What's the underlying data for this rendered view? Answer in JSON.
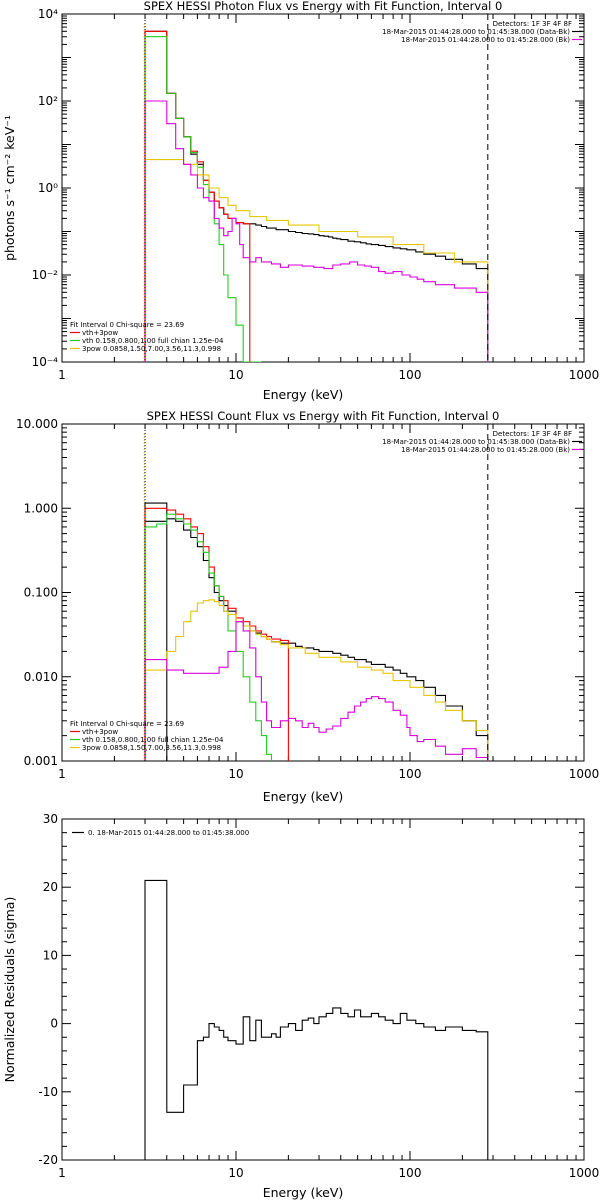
{
  "colors": {
    "black": "#000000",
    "red": "#ff0000",
    "green": "#22cc22",
    "magenta": "#dd00dd",
    "gold": "#e6c800",
    "orange": "#ff9900"
  },
  "chart_data": [
    {
      "type": "line",
      "id": "photon",
      "title": "SPEX HESSI Photon Flux vs Energy with Fit Function, Interval 0",
      "xlabel": "Energy (keV)",
      "ylabel": "photons s⁻¹ cm⁻² keV⁻¹",
      "xscale": "log",
      "yscale": "log",
      "xlim": [
        1,
        1000
      ],
      "ylim": [
        0.0001,
        10000
      ],
      "xticks": [
        {
          "v": 1,
          "label": "1"
        },
        {
          "v": 10,
          "label": "10"
        },
        {
          "v": 100,
          "label": "100"
        },
        {
          "v": 1000,
          "label": "1000"
        }
      ],
      "yticks": [
        {
          "v": 10000,
          "label": "10⁴"
        },
        {
          "v": 100,
          "label": "10²"
        },
        {
          "v": 1,
          "label": "10⁰"
        },
        {
          "v": 0.01,
          "label": "10⁻²"
        },
        {
          "v": 0.0001,
          "label": "10⁻⁴"
        }
      ],
      "vlines": [
        {
          "x": 3,
          "style": "dotted"
        },
        {
          "x": 280,
          "style": "dashed"
        }
      ],
      "legend_top": {
        "placement": "top-right",
        "header": "Detectors: 1F 3F 4F 8F",
        "entries": [
          {
            "text": "18-Mar-2015 01:44:28.000 to 01:45:38.000 (Data-Bk)",
            "color": "black"
          },
          {
            "text": "18-Mar-2015 01:44:28.000 to 01:45:28.000 (Bk)",
            "color": "magenta"
          }
        ]
      },
      "legend_bottom": {
        "placement": "bottom-left",
        "header": "Fit Interval 0   Chi-square = 23.69",
        "entries": [
          {
            "text": "vth+3pow",
            "color": "red"
          },
          {
            "text": "vth 0.158,0.800,1.00  full chian 1.25e-04",
            "color": "green"
          },
          {
            "text": "3pow 0.0858,1.50,7.00,3.56,11.3,0.998",
            "color": "gold"
          }
        ]
      },
      "series": [
        {
          "color": "black",
          "edges": [
            3,
            3.5,
            4,
            4.5,
            5,
            5.5,
            6,
            6.5,
            7,
            7.5,
            8,
            8.5,
            9,
            10,
            11,
            12,
            13,
            14,
            15,
            16,
            17,
            18,
            20,
            22,
            24,
            26,
            28,
            30,
            32,
            34,
            36,
            38,
            40,
            44,
            48,
            52,
            56,
            60,
            66,
            72,
            80,
            88,
            96,
            108,
            120,
            140,
            160,
            200,
            240,
            280
          ],
          "values": [
            4000,
            4000,
            150,
            40,
            15,
            6,
            3.5,
            1.5,
            0.8,
            0.5,
            0.35,
            0.25,
            0.2,
            0.16,
            0.15,
            0.15,
            0.14,
            0.13,
            0.12,
            0.12,
            0.11,
            0.11,
            0.1,
            0.095,
            0.09,
            0.088,
            0.085,
            0.08,
            0.078,
            0.075,
            0.07,
            0.068,
            0.065,
            0.06,
            0.058,
            0.055,
            0.052,
            0.05,
            0.048,
            0.045,
            0.042,
            0.04,
            0.038,
            0.034,
            0.03,
            0.027,
            0.023,
            0.018,
            0.014
          ]
        },
        {
          "color": "red",
          "edges": [
            3,
            4,
            4.5,
            5,
            5.5,
            6,
            6.5,
            7,
            7.5,
            8,
            8.5,
            9,
            10,
            11,
            12
          ],
          "values": [
            4000,
            150,
            40,
            15,
            7,
            4,
            1.5,
            0.8,
            0.5,
            0.35,
            0.25,
            0.2,
            0.16,
            0.15
          ]
        },
        {
          "color": "green",
          "edges": [
            3,
            3.5,
            4,
            4.5,
            5,
            5.5,
            6,
            6.5,
            7,
            7.5,
            8,
            8.5,
            9,
            10,
            11,
            12,
            13,
            14
          ],
          "values": [
            3000,
            3000,
            150,
            40,
            15,
            6.5,
            3,
            1.2,
            0.5,
            0.15,
            0.05,
            0.01,
            0.003,
            0.0007,
            0.0001,
            0.0001,
            0.0001
          ]
        },
        {
          "color": "gold",
          "edges": [
            3,
            4,
            5,
            6,
            7,
            8,
            9,
            10,
            12,
            15,
            20,
            30,
            50,
            80,
            120,
            180,
            280
          ],
          "values": [
            4.5,
            4.5,
            3.5,
            2,
            1,
            0.6,
            0.4,
            0.3,
            0.22,
            0.18,
            0.14,
            0.1,
            0.075,
            0.05,
            0.032,
            0.02
          ]
        },
        {
          "color": "magenta",
          "edges": [
            3,
            3.5,
            4,
            4.5,
            5,
            5.5,
            6,
            6.5,
            7,
            7.5,
            8,
            8.5,
            9,
            9.5,
            10,
            10.5,
            11,
            12,
            13,
            14,
            16,
            18,
            20,
            24,
            28,
            32,
            36,
            40,
            45,
            50,
            55,
            60,
            66,
            72,
            80,
            90,
            100,
            110,
            120,
            140,
            160,
            180,
            200,
            240,
            280
          ],
          "values": [
            100,
            100,
            30,
            8,
            3.5,
            2,
            1,
            0.6,
            0.5,
            0.2,
            0.12,
            0.08,
            0.1,
            0.2,
            0.15,
            0.05,
            0.025,
            0.02,
            0.025,
            0.02,
            0.018,
            0.015,
            0.017,
            0.016,
            0.015,
            0.014,
            0.017,
            0.018,
            0.02,
            0.017,
            0.016,
            0.015,
            0.012,
            0.011,
            0.012,
            0.01,
            0.009,
            0.008,
            0.007,
            0.006,
            0.006,
            0.005,
            0.005,
            0.004
          ]
        }
      ]
    },
    {
      "type": "line",
      "id": "count",
      "title": "SPEX HESSI Count Flux vs Energy with Fit Function, Interval 0",
      "xlabel": "Energy (keV)",
      "ylabel": "",
      "xscale": "log",
      "yscale": "log",
      "xlim": [
        1,
        1000
      ],
      "ylim": [
        0.001,
        10
      ],
      "xticks": [
        {
          "v": 1,
          "label": "1"
        },
        {
          "v": 10,
          "label": "10"
        },
        {
          "v": 100,
          "label": "100"
        },
        {
          "v": 1000,
          "label": "1000"
        }
      ],
      "yticks": [
        {
          "v": 10,
          "label": "10.000"
        },
        {
          "v": 1,
          "label": "1.000"
        },
        {
          "v": 0.1,
          "label": "0.100"
        },
        {
          "v": 0.01,
          "label": "0.010"
        },
        {
          "v": 0.001,
          "label": "0.001"
        }
      ],
      "vlines": [
        {
          "x": 3,
          "style": "dotted"
        },
        {
          "x": 280,
          "style": "dashed"
        }
      ],
      "legend_top": {
        "placement": "top-right",
        "header": "Detectors: 1F 3F 4F 8F",
        "entries": [
          {
            "text": "18-Mar-2015 01:44:28.000 to 01:45:38.000 (Data-Bk)",
            "color": "black"
          },
          {
            "text": "18-Mar-2015 01:44:28.000 to 01:45:28.000 (Bk)",
            "color": "magenta"
          }
        ]
      },
      "legend_bottom": {
        "placement": "bottom-left",
        "header": "Fit Interval 0   Chi-square = 23.69",
        "entries": [
          {
            "text": "vth+3pow",
            "color": "red"
          },
          {
            "text": "vth 0.158,0.800,1.00  full chian 1.25e-04",
            "color": "green"
          },
          {
            "text": "3pow 0.0858,1.50,7.00,3.56,11.3,0.998",
            "color": "gold"
          }
        ]
      },
      "series": [
        {
          "color": "black",
          "edges": [
            3,
            4,
            4.5,
            5,
            5.5,
            6,
            6.5,
            7,
            7.5,
            8,
            8.5,
            9,
            10,
            11,
            12,
            13,
            14,
            15,
            16,
            17,
            18,
            20,
            22,
            24,
            26,
            28,
            30,
            33,
            36,
            40,
            44,
            48,
            52,
            56,
            60,
            66,
            72,
            80,
            88,
            96,
            108,
            120,
            140,
            160,
            200,
            240,
            280
          ],
          "values": [
            0.7,
            0.75,
            0.7,
            0.55,
            0.45,
            0.35,
            0.24,
            0.15,
            0.1,
            0.08,
            0.07,
            0.06,
            0.045,
            0.04,
            0.035,
            0.033,
            0.03,
            0.028,
            0.026,
            0.026,
            0.025,
            0.025,
            0.023,
            0.022,
            0.022,
            0.021,
            0.02,
            0.02,
            0.019,
            0.018,
            0.017,
            0.016,
            0.016,
            0.015,
            0.014,
            0.014,
            0.013,
            0.012,
            0.011,
            0.01,
            0.009,
            0.0075,
            0.006,
            0.0045,
            0.003,
            0.002
          ]
        },
        {
          "color": "black",
          "edges": [
            3,
            4
          ],
          "values": [
            1.15
          ]
        },
        {
          "color": "red",
          "edges": [
            3,
            4,
            4.5,
            5,
            5.5,
            6,
            6.5,
            7,
            7.5,
            8,
            8.5,
            9,
            10,
            11,
            12,
            13,
            14,
            15,
            16,
            18,
            20
          ],
          "values": [
            1,
            0.95,
            0.85,
            0.75,
            0.6,
            0.5,
            0.35,
            0.2,
            0.12,
            0.09,
            0.08,
            0.065,
            0.05,
            0.045,
            0.04,
            0.035,
            0.032,
            0.03,
            0.028,
            0.027
          ]
        },
        {
          "color": "green",
          "edges": [
            3,
            3.5,
            4,
            4.5,
            5,
            5.5,
            6,
            6.5,
            7,
            7.5,
            8,
            8.5,
            9,
            10,
            11,
            12,
            13,
            14,
            15,
            16
          ],
          "values": [
            0.6,
            0.65,
            0.85,
            0.75,
            0.65,
            0.55,
            0.4,
            0.3,
            0.17,
            0.12,
            0.09,
            0.06,
            0.035,
            0.02,
            0.01,
            0.005,
            0.003,
            0.002,
            0.0012
          ]
        },
        {
          "color": "gold",
          "edges": [
            3,
            4,
            4.5,
            5,
            5.5,
            6,
            6.5,
            7,
            7.5,
            8,
            8.5,
            9,
            10,
            11,
            12,
            13,
            14,
            15,
            16,
            18,
            20,
            25,
            30,
            40,
            50,
            60,
            70,
            80,
            100,
            120,
            140,
            160,
            200,
            240,
            280
          ],
          "values": [
            0.012,
            0.02,
            0.03,
            0.045,
            0.06,
            0.075,
            0.08,
            0.082,
            0.078,
            0.07,
            0.06,
            0.055,
            0.045,
            0.04,
            0.035,
            0.032,
            0.03,
            0.028,
            0.026,
            0.024,
            0.022,
            0.019,
            0.017,
            0.015,
            0.013,
            0.012,
            0.011,
            0.009,
            0.0075,
            0.006,
            0.005,
            0.004,
            0.003,
            0.0023
          ]
        },
        {
          "color": "magenta",
          "edges": [
            3,
            4,
            5,
            6,
            7,
            8,
            9,
            10,
            11,
            12,
            13,
            14,
            15,
            16,
            18,
            20,
            22,
            24,
            26,
            28,
            30,
            33,
            36,
            40,
            44,
            48,
            52,
            56,
            60,
            66,
            72,
            80,
            88,
            96,
            100,
            110,
            120,
            140,
            160,
            200,
            240,
            280
          ],
          "values": [
            0.016,
            0.012,
            0.011,
            0.011,
            0.011,
            0.013,
            0.02,
            0.045,
            0.035,
            0.022,
            0.01,
            0.005,
            0.003,
            0.0025,
            0.003,
            0.0032,
            0.003,
            0.0025,
            0.0028,
            0.0025,
            0.0022,
            0.0024,
            0.0026,
            0.0032,
            0.0038,
            0.0045,
            0.005,
            0.0055,
            0.0058,
            0.0055,
            0.005,
            0.004,
            0.0035,
            0.0025,
            0.002,
            0.0017,
            0.0018,
            0.0015,
            0.0012,
            0.0014,
            0.0011
          ]
        }
      ]
    },
    {
      "type": "line",
      "id": "resid",
      "title": "",
      "xlabel": "Energy (keV)",
      "ylabel": "Normalized Residuals (sigma)",
      "xscale": "log",
      "yscale": "linear",
      "xlim": [
        1,
        1000
      ],
      "ylim": [
        -20,
        30
      ],
      "xticks": [
        {
          "v": 1,
          "label": "1"
        },
        {
          "v": 10,
          "label": "10"
        },
        {
          "v": 100,
          "label": "100"
        },
        {
          "v": 1000,
          "label": "1000"
        }
      ],
      "yticks": [
        {
          "v": 30,
          "label": "30"
        },
        {
          "v": 20,
          "label": "20"
        },
        {
          "v": 10,
          "label": "10"
        },
        {
          "v": 0,
          "label": "0"
        },
        {
          "v": -10,
          "label": "-10"
        },
        {
          "v": -20,
          "label": "-20"
        }
      ],
      "vlines": [],
      "legend_top": {
        "placement": "top-left",
        "header": "",
        "entries": [
          {
            "text": "0. 18-Mar-2015 01:44:28.000 to 01:45:38.000",
            "color": "black"
          }
        ]
      },
      "legend_bottom": null,
      "series": [
        {
          "color": "black",
          "edges": [
            3,
            4,
            5,
            6,
            6.5,
            7,
            7.5,
            8,
            8.5,
            9,
            10,
            11,
            12,
            13,
            14,
            15,
            16,
            17,
            18,
            20,
            22,
            24,
            26,
            28,
            30,
            33,
            36,
            40,
            44,
            48,
            52,
            56,
            60,
            66,
            72,
            80,
            88,
            96,
            108,
            120,
            140,
            160,
            200,
            240,
            280
          ],
          "values": [
            21,
            -13,
            -9,
            -2.5,
            -2,
            0,
            -0.5,
            -1,
            -2,
            -2.5,
            -3,
            1,
            -2.5,
            0.5,
            -2,
            -2,
            -1.5,
            -2,
            -0.5,
            0,
            -1,
            0.5,
            0.8,
            0,
            1,
            1.5,
            2.3,
            1.5,
            1,
            2,
            1,
            1,
            1.5,
            1,
            0.5,
            0,
            1.5,
            0.5,
            0,
            -0.5,
            -1,
            -0.5,
            -1,
            -1.2
          ]
        }
      ]
    }
  ]
}
